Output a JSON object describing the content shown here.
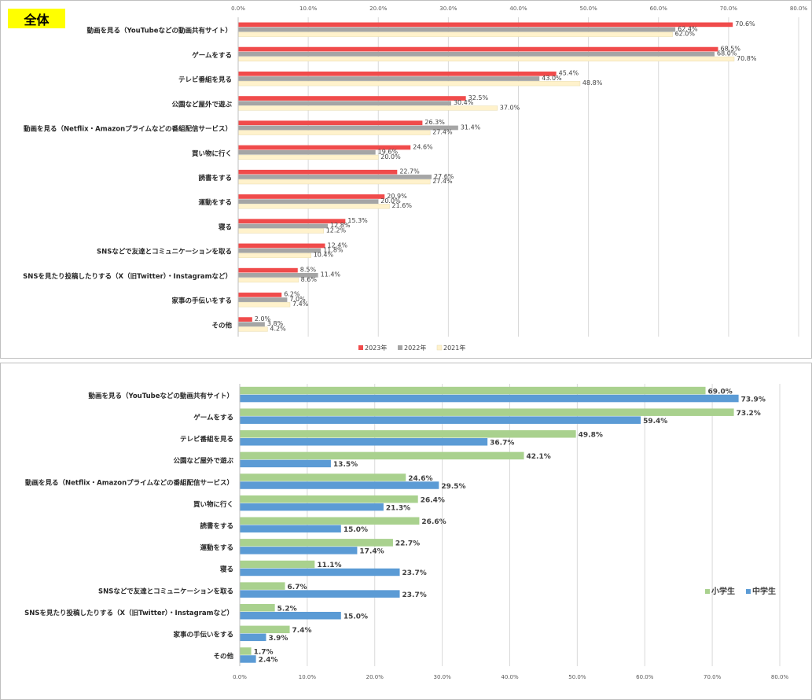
{
  "badge_label": "全体",
  "chart_data": [
    {
      "type": "bar",
      "orientation": "horizontal",
      "title": "全体",
      "categories": [
        "動画を見る（YouTubeなどの動画共有サイト）",
        "ゲームをする",
        "テレビ番組を見る",
        "公園など屋外で遊ぶ",
        "動画を見る（Netflix・Amazonプライムなどの番組配信サービス）",
        "買い物に行く",
        "読書をする",
        "運動をする",
        "寝る",
        "SNSなどで友達とコミュニケーションを取る",
        "SNSを見たり投稿したりする（X（旧Twitter）・Instagramなど）",
        "家事の手伝いをする",
        "その他"
      ],
      "series": [
        {
          "name": "2023年",
          "color": "#f04b4b",
          "values": [
            70.6,
            68.5,
            45.4,
            32.5,
            26.3,
            24.6,
            22.7,
            20.9,
            15.3,
            12.4,
            8.5,
            6.2,
            2.0
          ]
        },
        {
          "name": "2022年",
          "color": "#a5a5a5",
          "values": [
            62.4,
            68.0,
            43.0,
            30.4,
            31.4,
            19.6,
            27.6,
            20.0,
            12.8,
            11.8,
            11.4,
            7.0,
            3.8
          ]
        },
        {
          "name": "2021年",
          "color": "#fff2cc",
          "values": [
            62.0,
            70.8,
            48.8,
            37.0,
            27.4,
            20.0,
            27.4,
            21.6,
            12.2,
            10.4,
            8.6,
            7.4,
            4.2
          ]
        }
      ],
      "ticks": [
        "0.0%",
        "10.0%",
        "20.0%",
        "30.0%",
        "40.0%",
        "50.0%",
        "60.0%",
        "70.0%",
        "80.0%"
      ],
      "xlim": [
        0,
        80
      ],
      "axis_position": "top",
      "legend_position": "bottom",
      "grid": true
    },
    {
      "type": "bar",
      "orientation": "horizontal",
      "title": "",
      "categories": [
        "動画を見る（YouTubeなどの動画共有サイト）",
        "ゲームをする",
        "テレビ番組を見る",
        "公園など屋外で遊ぶ",
        "動画を見る（Netflix・Amazonプライムなどの番組配信サービス）",
        "買い物に行く",
        "読書をする",
        "運動をする",
        "寝る",
        "SNSなどで友達とコミュニケーションを取る",
        "SNSを見たり投稿したりする（X（旧Twitter）・Instagramなど）",
        "家事の手伝いをする",
        "その他"
      ],
      "series": [
        {
          "name": "小学生",
          "color": "#a9d18e",
          "values": [
            69.0,
            73.2,
            49.8,
            42.1,
            24.6,
            26.4,
            26.6,
            22.7,
            11.1,
            6.7,
            5.2,
            7.4,
            1.7
          ]
        },
        {
          "name": "中学生",
          "color": "#5b9bd5",
          "values": [
            73.9,
            59.4,
            36.7,
            13.5,
            29.5,
            21.3,
            15.0,
            17.4,
            23.7,
            23.7,
            15.0,
            3.9,
            2.4
          ]
        }
      ],
      "ticks": [
        "0.0%",
        "10.0%",
        "20.0%",
        "30.0%",
        "40.0%",
        "50.0%",
        "60.0%",
        "70.0%",
        "80.0%"
      ],
      "xlim": [
        0,
        80
      ],
      "axis_position": "bottom",
      "legend_position": "right",
      "grid": true
    }
  ]
}
